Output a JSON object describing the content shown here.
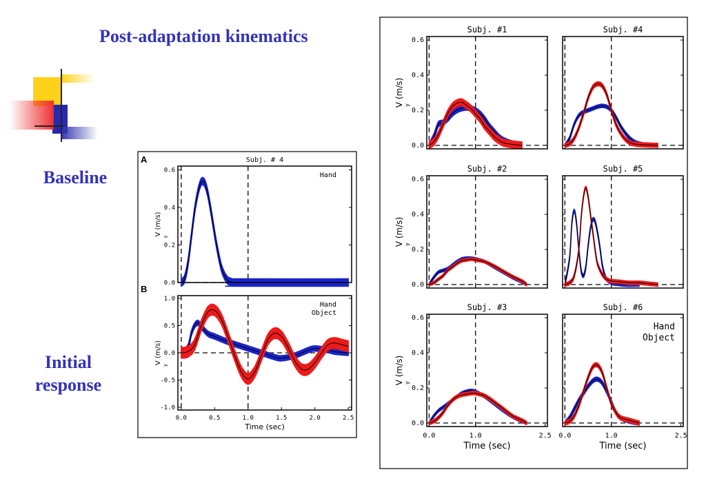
{
  "slide": {
    "title": "Post-adaptation kinematics",
    "label_baseline": "Baseline",
    "label_initial": "Initial response"
  },
  "colors": {
    "hand": "#1a24c8",
    "object": "#ee1a1a",
    "accent": "#3333b8",
    "yellow": "#ffd21a"
  },
  "chart_data": [
    {
      "type": "line",
      "panel_letter": "A",
      "title": "Subj. # 4",
      "xlabel": "",
      "ylabel": "V (m/s)",
      "y_subscript": "y",
      "xlim": [
        -0.05,
        2.55
      ],
      "ylim": [
        0,
        0.62
      ],
      "xticks": [],
      "yticks": [
        "0.0",
        "0.2",
        "0.4",
        "0.6"
      ],
      "ytick_values": [
        0,
        0.2,
        0.4,
        0.6
      ],
      "vlines": [
        0.0,
        1.0
      ],
      "hline": 0,
      "legend": [
        {
          "name": "Hand",
          "color": "hand"
        }
      ],
      "series": [
        {
          "name": "Hand",
          "color": "hand",
          "band": 0.02,
          "x": [
            0,
            0.05,
            0.1,
            0.15,
            0.2,
            0.25,
            0.3,
            0.35,
            0.4,
            0.45,
            0.5,
            0.55,
            0.6,
            0.65,
            0.7,
            0.75,
            0.8,
            2.5
          ],
          "y": [
            0,
            0.02,
            0.1,
            0.24,
            0.38,
            0.48,
            0.535,
            0.53,
            0.47,
            0.37,
            0.26,
            0.16,
            0.08,
            0.035,
            0.01,
            0.003,
            0,
            0
          ]
        }
      ]
    },
    {
      "type": "line",
      "panel_letter": "B",
      "title": "",
      "xlabel": "Time (sec)",
      "ylabel": "V (m/s)",
      "y_subscript": "y",
      "xlim": [
        -0.05,
        2.55
      ],
      "ylim": [
        -1.05,
        1.05
      ],
      "xticks": [
        "0.0",
        "0.5",
        "1.0",
        "1.5",
        "2.0",
        "2.5"
      ],
      "xtick_values": [
        0,
        0.5,
        1.0,
        1.5,
        2.0,
        2.5
      ],
      "yticks": [
        "-1.0",
        "-0.5",
        "0.0",
        "0.5",
        "1.0"
      ],
      "ytick_values": [
        -1,
        -0.5,
        0,
        0.5,
        1
      ],
      "vlines": [
        0.0,
        1.0
      ],
      "hline": 0,
      "legend": [
        {
          "name": "Hand",
          "color": "hand"
        },
        {
          "name": "Object",
          "color": "object"
        }
      ],
      "series": [
        {
          "name": "Hand",
          "color": "hand",
          "band": 0.05,
          "x": [
            0,
            0.1,
            0.15,
            0.2,
            0.25,
            0.3,
            0.4,
            0.5,
            0.7,
            1.0,
            1.2,
            1.4,
            1.5,
            1.7,
            1.9,
            2.0,
            2.2,
            2.3,
            2.5
          ],
          "y": [
            0,
            0.1,
            0.35,
            0.5,
            0.55,
            0.48,
            0.35,
            0.3,
            0.2,
            0.08,
            0.0,
            -0.08,
            -0.1,
            -0.05,
            0.05,
            0.08,
            0.05,
            0.02,
            0.0
          ]
        },
        {
          "name": "Object",
          "color": "object",
          "band": 0.1,
          "x": [
            0,
            0.1,
            0.2,
            0.3,
            0.4,
            0.5,
            0.6,
            0.7,
            0.8,
            0.9,
            1.0,
            1.1,
            1.2,
            1.3,
            1.4,
            1.5,
            1.6,
            1.7,
            1.8,
            1.9,
            2.0,
            2.1,
            2.2,
            2.3,
            2.4,
            2.5
          ],
          "y": [
            0,
            0.02,
            0.15,
            0.5,
            0.75,
            0.78,
            0.62,
            0.3,
            -0.05,
            -0.35,
            -0.48,
            -0.35,
            -0.05,
            0.25,
            0.36,
            0.3,
            0.1,
            -0.15,
            -0.3,
            -0.3,
            -0.18,
            0.0,
            0.15,
            0.18,
            0.15,
            0.12
          ]
        }
      ]
    },
    {
      "type": "line",
      "title": "Subj. #1",
      "xlabel": "",
      "ylabel": "V (m/s)",
      "y_subscript": "y",
      "xlim": [
        -0.05,
        2.55
      ],
      "ylim": [
        -0.02,
        0.62
      ],
      "xticks": [],
      "yticks": [
        "0.0",
        "0.2",
        "0.4",
        "0.6"
      ],
      "ytick_values": [
        0,
        0.2,
        0.4,
        0.6
      ],
      "vlines": [
        0.0,
        1.0
      ],
      "hline": 0,
      "legend": [],
      "series": [
        {
          "name": "Hand",
          "color": "hand",
          "band": 0.015,
          "x": [
            0,
            0.1,
            0.2,
            0.3,
            0.4,
            0.5,
            0.6,
            0.7,
            0.8,
            0.9,
            1.0,
            1.1,
            1.2,
            1.3,
            1.4,
            1.5,
            1.6,
            1.8,
            2.0
          ],
          "y": [
            0,
            0.05,
            0.12,
            0.13,
            0.15,
            0.18,
            0.2,
            0.21,
            0.215,
            0.21,
            0.2,
            0.18,
            0.15,
            0.11,
            0.08,
            0.05,
            0.03,
            0.01,
            0.0
          ]
        },
        {
          "name": "Object",
          "color": "object",
          "band": 0.02,
          "x": [
            0,
            0.1,
            0.2,
            0.3,
            0.4,
            0.5,
            0.6,
            0.7,
            0.8,
            0.9,
            1.0,
            1.1,
            1.2,
            1.3,
            1.4,
            1.5,
            1.6,
            1.8,
            2.0
          ],
          "y": [
            0,
            0.02,
            0.06,
            0.12,
            0.18,
            0.22,
            0.24,
            0.245,
            0.23,
            0.21,
            0.18,
            0.15,
            0.11,
            0.08,
            0.05,
            0.03,
            0.015,
            0.005,
            0.0
          ]
        }
      ]
    },
    {
      "type": "line",
      "title": "Subj. #4",
      "xlabel": "",
      "ylabel": "",
      "y_subscript": "",
      "xlim": [
        -0.05,
        2.55
      ],
      "ylim": [
        -0.02,
        0.62
      ],
      "xticks": [],
      "yticks": [],
      "ytick_values": [
        0,
        0.2,
        0.4,
        0.6
      ],
      "vlines": [
        0.0,
        1.0
      ],
      "hline": 0,
      "legend": [],
      "series": [
        {
          "name": "Hand",
          "color": "hand",
          "band": 0.01,
          "x": [
            0,
            0.1,
            0.2,
            0.3,
            0.4,
            0.5,
            0.6,
            0.7,
            0.8,
            0.9,
            1.0,
            1.1,
            1.2,
            1.3,
            1.4,
            1.5,
            1.6,
            1.8,
            2.0
          ],
          "y": [
            0,
            0.04,
            0.12,
            0.17,
            0.19,
            0.2,
            0.21,
            0.22,
            0.225,
            0.22,
            0.2,
            0.16,
            0.11,
            0.07,
            0.04,
            0.02,
            0.01,
            0.0,
            0.0
          ]
        },
        {
          "name": "Object",
          "color": "object",
          "band": 0.012,
          "x": [
            0,
            0.1,
            0.2,
            0.3,
            0.4,
            0.5,
            0.6,
            0.7,
            0.8,
            0.9,
            1.0,
            1.1,
            1.2,
            1.3,
            1.4,
            1.5,
            1.6,
            1.8,
            2.0
          ],
          "y": [
            0,
            0.01,
            0.04,
            0.1,
            0.18,
            0.27,
            0.33,
            0.35,
            0.34,
            0.29,
            0.2,
            0.12,
            0.07,
            0.035,
            0.015,
            0.008,
            0.004,
            0.002,
            0.0
          ]
        }
      ]
    },
    {
      "type": "line",
      "title": "Subj. #2",
      "xlabel": "",
      "ylabel": "V (m/s)",
      "y_subscript": "y",
      "xlim": [
        -0.05,
        2.55
      ],
      "ylim": [
        -0.02,
        0.62
      ],
      "xticks": [],
      "yticks": [
        "0.0",
        "0.2",
        "0.4",
        "0.6"
      ],
      "ytick_values": [
        0,
        0.2,
        0.4,
        0.6
      ],
      "vlines": [
        0.0,
        1.0
      ],
      "hline": 0,
      "legend": [],
      "series": [
        {
          "name": "Hand",
          "color": "hand",
          "band": 0.008,
          "x": [
            0,
            0.1,
            0.2,
            0.3,
            0.4,
            0.5,
            0.6,
            0.7,
            0.8,
            0.9,
            1.0,
            1.2,
            1.4,
            1.6,
            1.8,
            2.0,
            2.1
          ],
          "y": [
            0,
            0.04,
            0.07,
            0.08,
            0.09,
            0.11,
            0.13,
            0.145,
            0.15,
            0.15,
            0.145,
            0.13,
            0.1,
            0.07,
            0.04,
            0.015,
            0.0
          ]
        },
        {
          "name": "Object",
          "color": "object",
          "band": 0.008,
          "x": [
            0,
            0.1,
            0.2,
            0.3,
            0.4,
            0.5,
            0.6,
            0.7,
            0.8,
            0.9,
            1.0,
            1.2,
            1.4,
            1.6,
            1.8,
            2.0,
            2.1
          ],
          "y": [
            0,
            0.01,
            0.03,
            0.05,
            0.08,
            0.1,
            0.12,
            0.135,
            0.14,
            0.145,
            0.14,
            0.13,
            0.105,
            0.075,
            0.045,
            0.02,
            0.0
          ]
        }
      ]
    },
    {
      "type": "line",
      "title": "Subj. #5",
      "xlabel": "",
      "ylabel": "",
      "y_subscript": "",
      "xlim": [
        -0.05,
        2.55
      ],
      "ylim": [
        -0.02,
        0.62
      ],
      "xticks": [],
      "yticks": [],
      "ytick_values": [
        0,
        0.2,
        0.4,
        0.6
      ],
      "vlines": [
        0.0,
        1.0
      ],
      "hline": 0,
      "legend": [],
      "series": [
        {
          "name": "Hand",
          "color": "hand",
          "band": 0.01,
          "x": [
            0,
            0.1,
            0.15,
            0.2,
            0.25,
            0.3,
            0.35,
            0.4,
            0.45,
            0.5,
            0.55,
            0.6,
            0.65,
            0.7,
            0.75,
            0.8,
            0.85,
            0.9,
            1.0,
            1.1,
            1.3,
            1.6
          ],
          "y": [
            0,
            0.15,
            0.35,
            0.42,
            0.35,
            0.2,
            0.08,
            0.05,
            0.1,
            0.22,
            0.32,
            0.37,
            0.36,
            0.3,
            0.22,
            0.12,
            0.06,
            0.03,
            0.01,
            0.005,
            0.0,
            0.0
          ]
        },
        {
          "name": "Object",
          "color": "object",
          "band": 0.01,
          "x": [
            0,
            0.1,
            0.2,
            0.3,
            0.35,
            0.4,
            0.45,
            0.5,
            0.55,
            0.6,
            0.65,
            0.7,
            0.8,
            0.9,
            1.0,
            1.2,
            1.4,
            1.6,
            1.8,
            2.0
          ],
          "y": [
            0,
            0.01,
            0.05,
            0.2,
            0.38,
            0.5,
            0.55,
            0.5,
            0.4,
            0.3,
            0.2,
            0.12,
            0.06,
            0.03,
            0.02,
            0.015,
            0.01,
            0.01,
            0.005,
            0.0
          ]
        }
      ]
    },
    {
      "type": "line",
      "title": "Subj. #3",
      "xlabel": "Time (sec)",
      "ylabel": "V (m/s)",
      "y_subscript": "y",
      "xlim": [
        -0.05,
        2.55
      ],
      "ylim": [
        -0.02,
        0.62
      ],
      "xticks": [
        "0.0",
        "1.0",
        "2.5"
      ],
      "xtick_values": [
        0,
        1.0,
        2.5
      ],
      "yticks": [
        "0.0",
        "0.2",
        "0.4",
        "0.6"
      ],
      "ytick_values": [
        0,
        0.2,
        0.4,
        0.6
      ],
      "vlines": [
        0.0,
        1.0
      ],
      "hline": 0,
      "legend": [],
      "series": [
        {
          "name": "Hand",
          "color": "hand",
          "band": 0.008,
          "x": [
            0,
            0.1,
            0.2,
            0.3,
            0.4,
            0.5,
            0.6,
            0.7,
            0.8,
            0.9,
            1.0,
            1.2,
            1.4,
            1.6,
            1.8,
            2.0,
            2.1
          ],
          "y": [
            0,
            0.04,
            0.07,
            0.09,
            0.11,
            0.13,
            0.15,
            0.17,
            0.18,
            0.185,
            0.18,
            0.15,
            0.11,
            0.07,
            0.035,
            0.01,
            0.0
          ]
        },
        {
          "name": "Object",
          "color": "object",
          "band": 0.01,
          "x": [
            0,
            0.1,
            0.2,
            0.3,
            0.4,
            0.5,
            0.6,
            0.7,
            0.8,
            0.9,
            1.0,
            1.2,
            1.4,
            1.6,
            1.8,
            2.0,
            2.1
          ],
          "y": [
            0,
            0.01,
            0.03,
            0.06,
            0.1,
            0.13,
            0.15,
            0.16,
            0.165,
            0.17,
            0.17,
            0.155,
            0.12,
            0.08,
            0.04,
            0.015,
            0.0
          ]
        }
      ]
    },
    {
      "type": "line",
      "title": "Subj. #6",
      "xlabel": "Time (sec)",
      "ylabel": "",
      "y_subscript": "",
      "xlim": [
        -0.05,
        2.55
      ],
      "ylim": [
        -0.02,
        0.62
      ],
      "xticks": [
        "0.0",
        "1.0",
        "2.5"
      ],
      "xtick_values": [
        0,
        1.0,
        2.5
      ],
      "yticks": [],
      "ytick_values": [
        0,
        0.2,
        0.4,
        0.6
      ],
      "vlines": [
        0.0,
        1.0
      ],
      "hline": 0,
      "legend": [
        {
          "name": "Hand",
          "color": "hand"
        },
        {
          "name": "Object",
          "color": "object"
        }
      ],
      "series": [
        {
          "name": "Hand",
          "color": "hand",
          "band": 0.012,
          "x": [
            0,
            0.1,
            0.2,
            0.3,
            0.4,
            0.5,
            0.6,
            0.7,
            0.8,
            0.9,
            1.0,
            1.1,
            1.2,
            1.4,
            1.6
          ],
          "y": [
            0,
            0.03,
            0.08,
            0.13,
            0.17,
            0.21,
            0.24,
            0.25,
            0.23,
            0.18,
            0.12,
            0.06,
            0.03,
            0.01,
            0.0
          ]
        },
        {
          "name": "Object",
          "color": "object",
          "band": 0.012,
          "x": [
            0,
            0.1,
            0.2,
            0.3,
            0.4,
            0.5,
            0.6,
            0.7,
            0.8,
            0.9,
            1.0,
            1.1,
            1.2,
            1.4,
            1.6
          ],
          "y": [
            0,
            0.01,
            0.04,
            0.1,
            0.18,
            0.26,
            0.32,
            0.33,
            0.29,
            0.2,
            0.11,
            0.06,
            0.03,
            0.015,
            0.0
          ]
        }
      ]
    }
  ]
}
